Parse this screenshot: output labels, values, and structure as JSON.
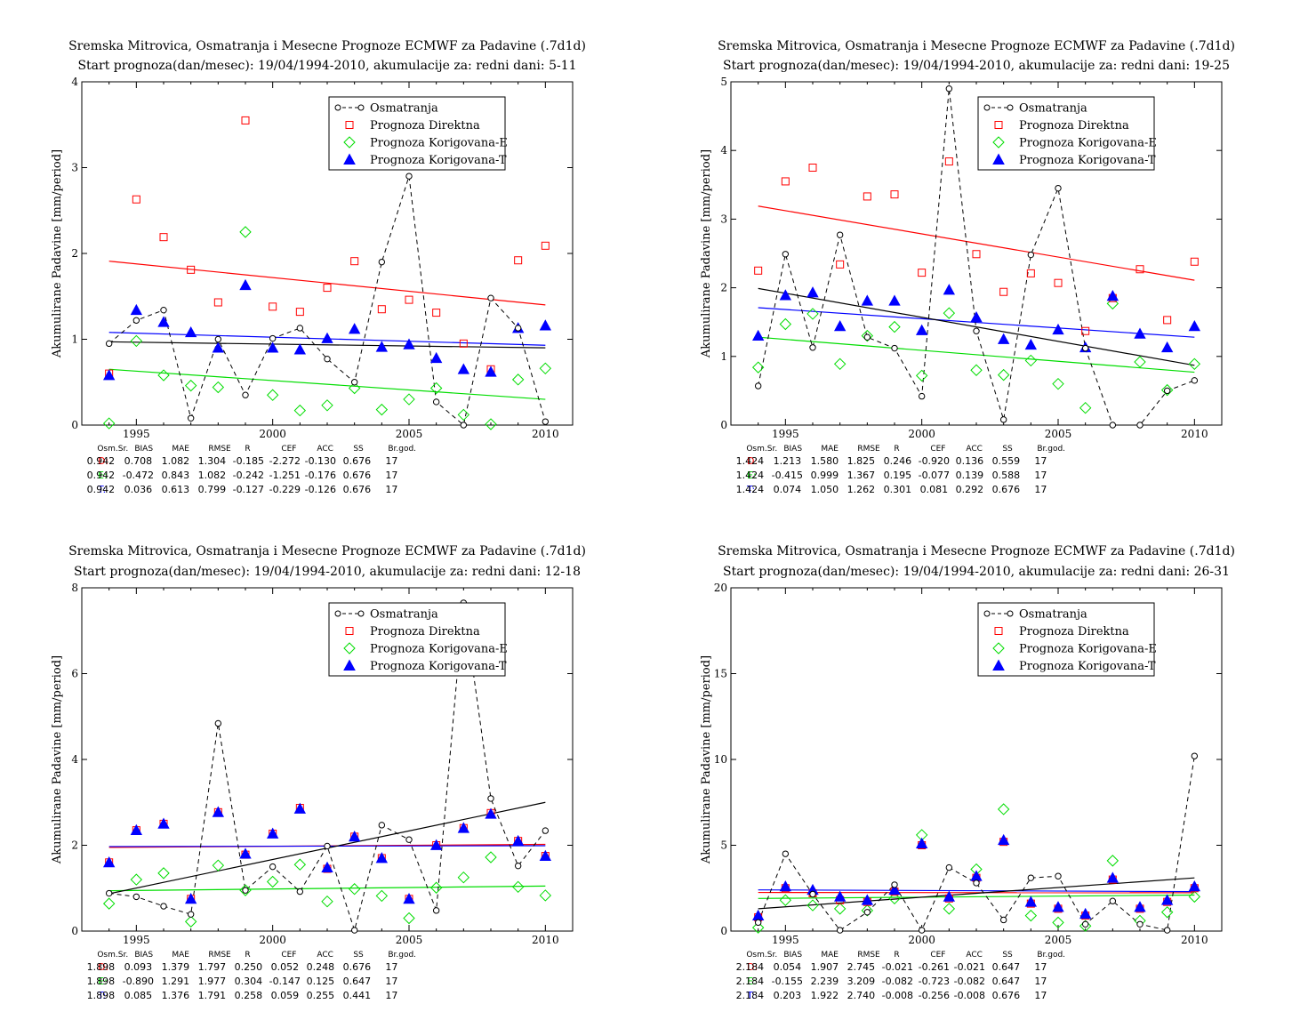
{
  "legend": {
    "obs": "Osmatranja",
    "direct": "Prognoza Direktna",
    "corrE": "Prognoza Korigovana-E",
    "corrT": "Prognoza Korigovana-T"
  },
  "colors": {
    "obs": "#000000",
    "direct": "#ff0000",
    "corrE": "#00dd00",
    "corrT": "#0000ff"
  },
  "stats_headers": [
    "Osm.Sr.",
    "BIAS",
    "MAE",
    "RMSE",
    "R",
    "CEF",
    "ACC",
    "SS",
    "Br.god."
  ],
  "chart_data": [
    {
      "type": "scatter",
      "title": "Sremska Mitrovica, Osmatranja i Mesecne Prognoze ECMWF za Padavine (.7d1d)",
      "subtitle": "Start prognoza(dan/mesec): 19/04/1994-2010, akumulacije za: redni dani: 5-11",
      "ylabel": "Akumulirane Padavine [mm/period]",
      "xlim": [
        1993,
        2011
      ],
      "ylim": [
        0,
        4
      ],
      "xticks": [
        1995,
        2000,
        2005,
        2010
      ],
      "yticks": [
        0,
        1,
        2,
        3,
        4
      ],
      "legend_position": "top-right",
      "x": [
        1994,
        1995,
        1996,
        1997,
        1998,
        1999,
        2000,
        2001,
        2002,
        2003,
        2004,
        2005,
        2006,
        2007,
        2008,
        2009,
        2010
      ],
      "series": [
        {
          "name": "Osmatranja",
          "values": [
            0.95,
            1.22,
            1.34,
            0.08,
            1.0,
            0.35,
            1.01,
            1.13,
            0.77,
            0.5,
            1.9,
            2.9,
            0.27,
            0.0,
            1.48,
            1.13,
            0.04
          ]
        },
        {
          "name": "Prognoza Direktna",
          "values": [
            0.6,
            2.63,
            2.19,
            1.81,
            1.43,
            3.55,
            1.38,
            1.32,
            1.6,
            1.91,
            1.35,
            1.46,
            1.31,
            0.95,
            0.65,
            1.92,
            2.09
          ]
        },
        {
          "name": "Prognoza Korigovana-E",
          "values": [
            0.02,
            0.98,
            0.58,
            0.46,
            0.44,
            2.25,
            0.35,
            0.17,
            0.23,
            0.43,
            0.18,
            0.3,
            0.43,
            0.12,
            0.01,
            0.53,
            0.66
          ]
        },
        {
          "name": "Prognoza Korigovana-T",
          "values": [
            0.58,
            1.34,
            1.2,
            1.08,
            0.9,
            1.63,
            0.9,
            0.88,
            1.01,
            1.12,
            0.91,
            0.94,
            0.78,
            0.65,
            0.62,
            1.13,
            1.16
          ]
        }
      ],
      "trends": {
        "obs": [
          0.97,
          0.9
        ],
        "direct": [
          1.91,
          1.4
        ],
        "corrE": [
          0.65,
          0.3
        ],
        "corrT": [
          1.08,
          0.93
        ]
      },
      "stats": [
        {
          "label": "D:",
          "values": [
            "0.942",
            "0.708",
            "1.082",
            "1.304",
            "-0.185",
            "-2.272",
            "-0.130",
            "0.676",
            "17"
          ]
        },
        {
          "label": "E:",
          "values": [
            "0.942",
            "-0.472",
            "0.843",
            "1.082",
            "-0.242",
            "-1.251",
            "-0.176",
            "0.676",
            "17"
          ]
        },
        {
          "label": "T:",
          "values": [
            "0.942",
            "0.036",
            "0.613",
            "0.799",
            "-0.127",
            "-0.229",
            "-0.126",
            "0.676",
            "17"
          ]
        }
      ]
    },
    {
      "type": "scatter",
      "title": "Sremska Mitrovica, Osmatranja i Mesecne Prognoze ECMWF za Padavine (.7d1d)",
      "subtitle": "Start prognoza(dan/mesec): 19/04/1994-2010, akumulacije za: redni dani: 19-25",
      "ylabel": "Akumulirane Padavine [mm/period]",
      "xlim": [
        1993,
        2011
      ],
      "ylim": [
        0,
        5
      ],
      "xticks": [
        1995,
        2000,
        2005,
        2010
      ],
      "yticks": [
        0,
        1,
        2,
        3,
        4,
        5
      ],
      "legend_position": "top-right",
      "x": [
        1994,
        1995,
        1996,
        1997,
        1998,
        1999,
        2000,
        2001,
        2002,
        2003,
        2004,
        2005,
        2006,
        2007,
        2008,
        2009,
        2010
      ],
      "series": [
        {
          "name": "Osmatranja",
          "values": [
            0.57,
            2.49,
            1.13,
            2.77,
            1.28,
            1.12,
            0.42,
            4.9,
            1.37,
            0.08,
            2.48,
            3.45,
            1.12,
            0.0,
            0.0,
            0.5,
            0.65
          ]
        },
        {
          "name": "Prognoza Direktna",
          "values": [
            2.25,
            3.55,
            3.75,
            2.34,
            3.33,
            3.36,
            2.22,
            3.84,
            2.49,
            1.94,
            2.21,
            2.07,
            1.37,
            1.85,
            2.27,
            1.53,
            2.38
          ]
        },
        {
          "name": "Prognoza Korigovana-E",
          "values": [
            0.84,
            1.47,
            1.62,
            0.89,
            1.3,
            1.43,
            0.72,
            1.63,
            0.8,
            0.73,
            0.94,
            0.6,
            0.25,
            1.77,
            0.92,
            0.51,
            0.89
          ]
        },
        {
          "name": "Prognoza Korigovana-T",
          "values": [
            1.3,
            1.89,
            1.93,
            1.44,
            1.81,
            1.81,
            1.38,
            1.97,
            1.57,
            1.25,
            1.17,
            1.39,
            1.13,
            1.88,
            1.33,
            1.13,
            1.44
          ]
        }
      ],
      "trends": {
        "obs": [
          1.99,
          0.87
        ],
        "direct": [
          3.19,
          2.11
        ],
        "corrE": [
          1.28,
          0.77
        ],
        "corrT": [
          1.71,
          1.28
        ]
      },
      "stats": [
        {
          "label": "D:",
          "values": [
            "1.424",
            "1.213",
            "1.580",
            "1.825",
            "0.246",
            "-0.920",
            "0.136",
            "0.559",
            "17"
          ]
        },
        {
          "label": "E:",
          "values": [
            "1.424",
            "-0.415",
            "0.999",
            "1.367",
            "0.195",
            "-0.077",
            "0.139",
            "0.588",
            "17"
          ]
        },
        {
          "label": "T:",
          "values": [
            "1.424",
            "0.074",
            "1.050",
            "1.262",
            "0.301",
            "0.081",
            "0.292",
            "0.676",
            "17"
          ]
        }
      ]
    },
    {
      "type": "scatter",
      "title": "Sremska Mitrovica, Osmatranja i Mesecne Prognoze ECMWF za Padavine (.7d1d)",
      "subtitle": "Start prognoza(dan/mesec): 19/04/1994-2010, akumulacije za: redni dani: 12-18",
      "ylabel": "Akumulirane Padavine [mm/period]",
      "xlim": [
        1993,
        2011
      ],
      "ylim": [
        0,
        8
      ],
      "xticks": [
        1995,
        2000,
        2005,
        2010
      ],
      "yticks": [
        0,
        2,
        4,
        6,
        8
      ],
      "legend_position": "top-right",
      "x": [
        1994,
        1995,
        1996,
        1997,
        1998,
        1999,
        2000,
        2001,
        2002,
        2003,
        2004,
        2005,
        2006,
        2007,
        2008,
        2009,
        2010
      ],
      "series": [
        {
          "name": "Osmatranja",
          "values": [
            0.88,
            0.8,
            0.58,
            0.39,
            4.84,
            0.95,
            1.5,
            0.92,
            1.98,
            0.02,
            2.47,
            2.13,
            0.48,
            7.65,
            3.09,
            1.52,
            2.34
          ]
        },
        {
          "name": "Prognoza Direktna",
          "values": [
            1.6,
            2.35,
            2.5,
            0.75,
            2.77,
            1.78,
            2.27,
            2.87,
            1.45,
            2.2,
            1.7,
            0.75,
            2.0,
            2.4,
            2.75,
            2.1,
            1.75
          ]
        },
        {
          "name": "Prognoza Korigovana-E",
          "values": [
            0.64,
            1.2,
            1.35,
            0.22,
            1.53,
            0.95,
            1.15,
            1.55,
            0.69,
            0.98,
            0.82,
            0.3,
            1.01,
            1.25,
            1.72,
            1.03,
            0.83
          ]
        },
        {
          "name": "Prognoza Korigovana-T",
          "values": [
            1.6,
            2.35,
            2.5,
            0.75,
            2.77,
            1.8,
            2.27,
            2.85,
            1.48,
            2.2,
            1.7,
            0.75,
            2.0,
            2.4,
            2.73,
            2.1,
            1.75
          ]
        }
      ],
      "trends": {
        "obs": [
          0.87,
          3.0
        ],
        "direct": [
          1.95,
          2.02
        ],
        "corrE": [
          0.94,
          1.05
        ],
        "corrT": [
          1.97,
          1.99
        ]
      },
      "stats": [
        {
          "label": "D:",
          "values": [
            "1.898",
            "0.093",
            "1.379",
            "1.797",
            "0.250",
            "0.052",
            "0.248",
            "0.676",
            "17"
          ]
        },
        {
          "label": "E:",
          "values": [
            "1.898",
            "-0.890",
            "1.291",
            "1.977",
            "0.304",
            "-0.147",
            "0.125",
            "0.647",
            "17"
          ]
        },
        {
          "label": "T:",
          "values": [
            "1.898",
            "0.085",
            "1.376",
            "1.791",
            "0.258",
            "0.059",
            "0.255",
            "0.441",
            "17"
          ]
        }
      ]
    },
    {
      "type": "scatter",
      "title": "Sremska Mitrovica, Osmatranja i Mesecne Prognoze ECMWF za Padavine (.7d1d)",
      "subtitle": "Start prognoza(dan/mesec): 19/04/1994-2010, akumulacije za: redni dani: 26-31",
      "ylabel": "Akumulirane Padavine [mm/period]",
      "xlim": [
        1993,
        2011
      ],
      "ylim": [
        0,
        20
      ],
      "xticks": [
        1995,
        2000,
        2005,
        2010
      ],
      "yticks": [
        0,
        5,
        10,
        15,
        20
      ],
      "legend_position": "top-right",
      "x": [
        1994,
        1995,
        1996,
        1997,
        1998,
        1999,
        2000,
        2001,
        2002,
        2003,
        2004,
        2005,
        2006,
        2007,
        2008,
        2009,
        2010
      ],
      "series": [
        {
          "name": "Osmatranja",
          "values": [
            0.5,
            4.5,
            2.15,
            0.05,
            1.1,
            2.7,
            0.05,
            3.7,
            2.8,
            0.65,
            3.1,
            3.2,
            0.4,
            1.75,
            0.4,
            0.05,
            10.2
          ]
        },
        {
          "name": "Prognoza Direktna",
          "values": [
            0.8,
            2.5,
            2.2,
            1.8,
            1.7,
            2.3,
            5.0,
            1.9,
            3.1,
            5.2,
            1.6,
            1.3,
            0.9,
            3.0,
            1.3,
            1.7,
            2.5
          ]
        },
        {
          "name": "Prognoza Korigovana-E",
          "values": [
            0.2,
            1.8,
            1.5,
            1.3,
            1.2,
            1.9,
            5.6,
            1.3,
            3.6,
            7.1,
            0.9,
            0.5,
            0.3,
            4.1,
            0.6,
            1.1,
            2.0
          ]
        },
        {
          "name": "Prognoza Korigovana-T",
          "values": [
            0.9,
            2.6,
            2.4,
            2.0,
            1.8,
            2.4,
            5.1,
            2.0,
            3.2,
            5.3,
            1.7,
            1.4,
            1.0,
            3.1,
            1.4,
            1.8,
            2.6
          ]
        }
      ],
      "trends": {
        "obs": [
          1.3,
          3.1
        ],
        "direct": [
          2.25,
          2.23
        ],
        "corrE": [
          1.9,
          2.1
        ],
        "corrT": [
          2.4,
          2.3
        ]
      },
      "stats": [
        {
          "label": "D:",
          "values": [
            "2.184",
            "0.054",
            "1.907",
            "2.745",
            "-0.021",
            "-0.261",
            "-0.021",
            "0.647",
            "17"
          ]
        },
        {
          "label": "E:",
          "values": [
            "2.184",
            "-0.155",
            "2.239",
            "3.209",
            "-0.082",
            "-0.723",
            "-0.082",
            "0.647",
            "17"
          ]
        },
        {
          "label": "T:",
          "values": [
            "2.184",
            "0.203",
            "1.922",
            "2.740",
            "-0.008",
            "-0.256",
            "-0.008",
            "0.676",
            "17"
          ]
        }
      ]
    }
  ]
}
